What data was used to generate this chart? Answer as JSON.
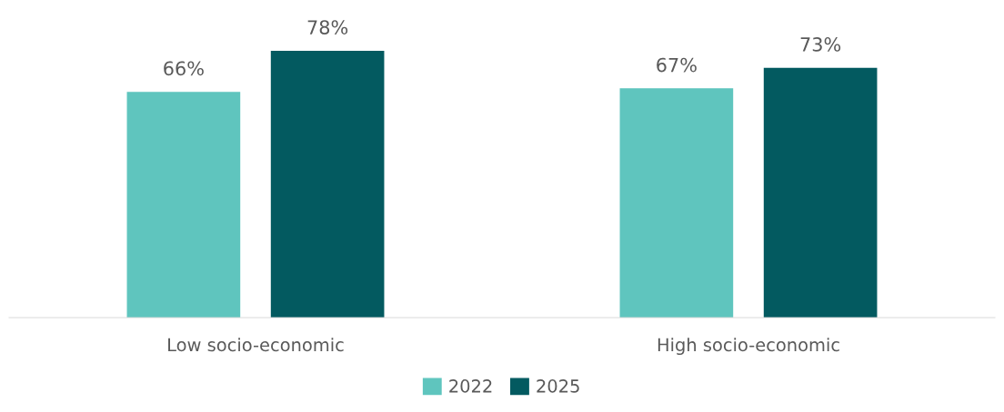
{
  "chart_data": {
    "type": "bar",
    "categories": [
      "Low socio-economic",
      "High socio-economic"
    ],
    "series": [
      {
        "name": "2022",
        "color": "#5fc5be",
        "values": [
          66,
          67
        ],
        "value_labels": [
          "66%",
          "67%"
        ]
      },
      {
        "name": "2025",
        "color": "#035a60",
        "values": [
          78,
          73
        ],
        "value_labels": [
          "78%",
          "73%"
        ]
      }
    ],
    "legend": "bottom",
    "grid": false
  }
}
